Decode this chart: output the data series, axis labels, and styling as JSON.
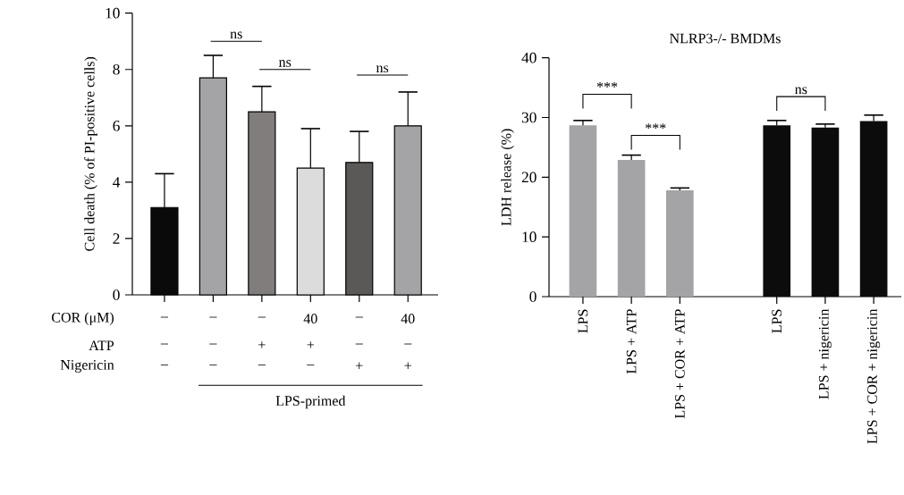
{
  "chart_data": [
    {
      "type": "bar",
      "ylabel": "Cell death (% of PI-positive cells)",
      "categories": [
        null,
        null,
        null,
        null,
        null,
        null
      ],
      "values": [
        3.1,
        7.7,
        6.5,
        4.5,
        4.7,
        6.0
      ],
      "errors": [
        [
          3.1,
          4.3
        ],
        [
          7.7,
          8.5
        ],
        [
          6.5,
          7.4
        ],
        [
          4.5,
          5.9
        ],
        [
          4.7,
          5.8
        ],
        [
          6.0,
          7.2
        ]
      ],
      "colors": [
        "#0a0a0a",
        "#a4a3a5",
        "#807d7c",
        "#dcdcdc",
        "#5a5957",
        "#a4a3a5"
      ],
      "ylim": [
        0,
        10
      ],
      "yticks": [
        0,
        2,
        4,
        6,
        8,
        10
      ],
      "tick_labels": "y",
      "annotations": [
        "ns",
        "ns",
        "ns",
        "COR (μM)",
        "–",
        "–",
        "–",
        "40",
        "–",
        "40",
        "ATP",
        "–",
        "–",
        "+",
        "+",
        "–",
        "–",
        "Nigericin",
        "–",
        "–",
        "–",
        "–",
        "+",
        "+",
        "LPS-primed"
      ]
    },
    {
      "type": "bar",
      "title": "NLRP3-/- BMDMs",
      "ylabel": "LDH release (%)",
      "categories": [
        "LPS",
        "LPS + ATP",
        "LPS + COR + ATP",
        null,
        "LPS",
        "LPS + nigericin",
        "LPS + COR + nigericin"
      ],
      "values": [
        28.7,
        22.9,
        17.8,
        null,
        28.7,
        28.3,
        29.4
      ],
      "errors": [
        [
          28.7,
          29.5
        ],
        [
          22.9,
          23.7
        ],
        [
          17.8,
          18.2
        ],
        null,
        [
          28.7,
          29.5
        ],
        [
          28.3,
          28.9
        ],
        [
          29.4,
          30.4
        ]
      ],
      "colors": [
        "#a4a3a5",
        "#a4a3a5",
        "#a4a3a5",
        null,
        "#0c0c0c",
        "#0c0c0c",
        "#0c0c0c"
      ],
      "ylim": [
        0,
        40
      ],
      "yticks": [
        0,
        10,
        20,
        30,
        40
      ],
      "annotations": [
        "***",
        "***",
        "ns"
      ]
    }
  ]
}
